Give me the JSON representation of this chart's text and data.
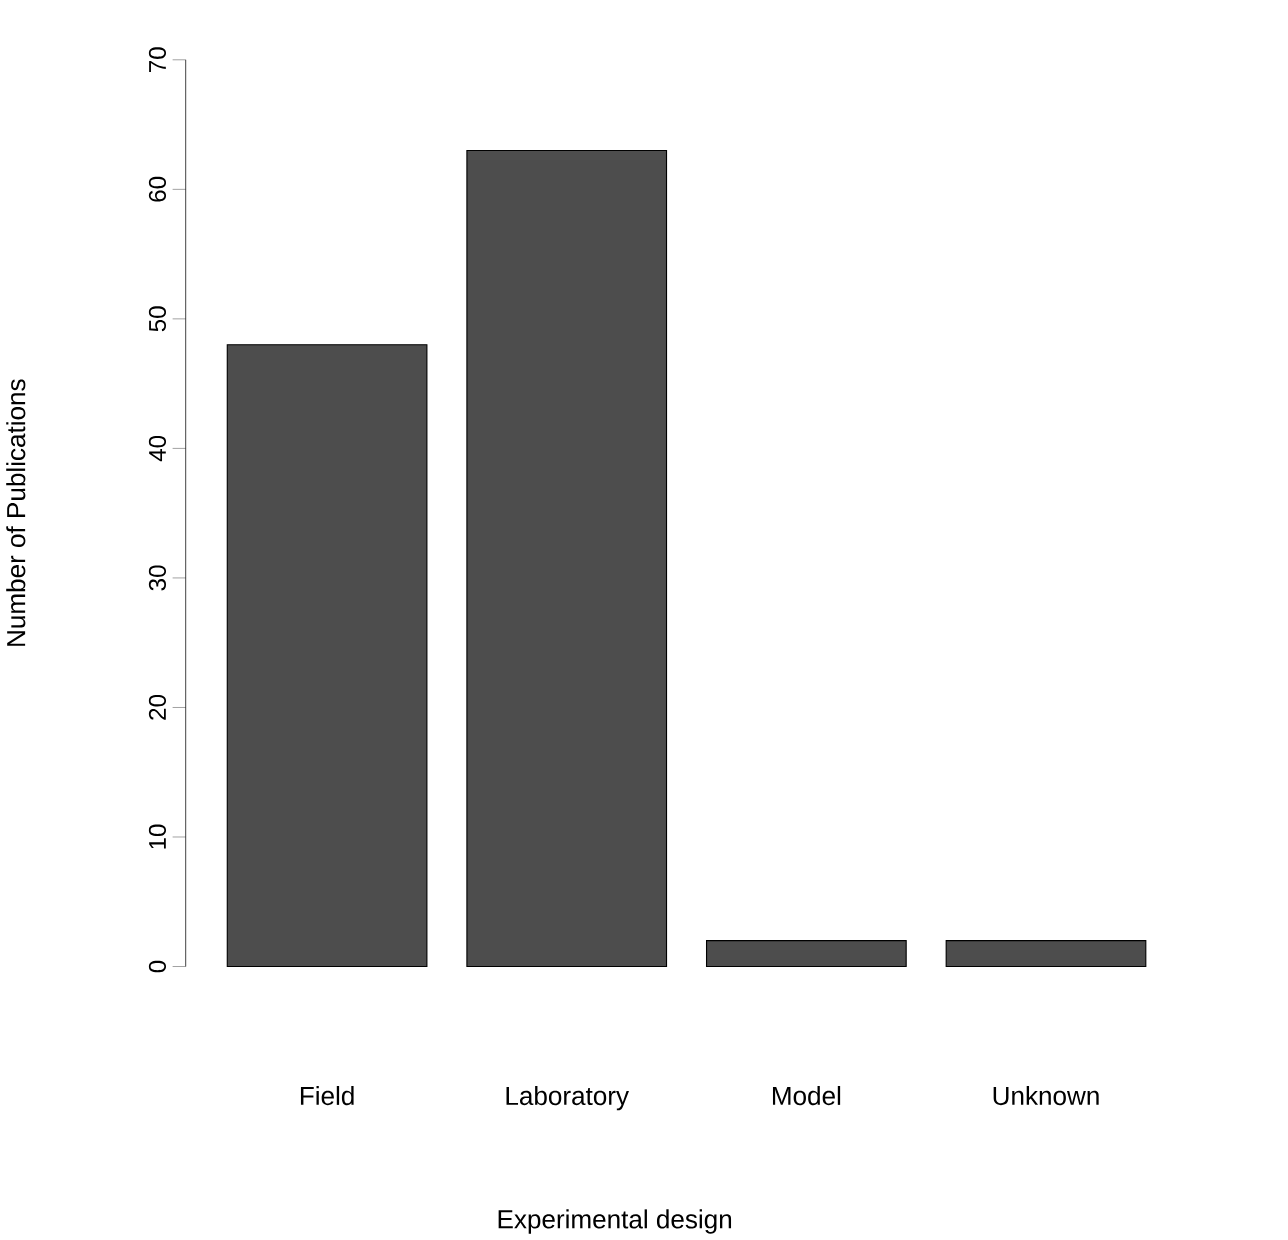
{
  "chart_data": {
    "type": "bar",
    "xlabel": "Experimental design",
    "ylabel": "Number of Publications",
    "categories": [
      "Field",
      "Laboratory",
      "Model",
      "Unknown"
    ],
    "values": [
      48,
      63,
      2,
      2
    ],
    "color": "#4d4d4d",
    "ylim": [
      0,
      70
    ],
    "yticks": [
      0,
      10,
      20,
      30,
      40,
      50,
      60,
      70
    ],
    "grid": false
  }
}
